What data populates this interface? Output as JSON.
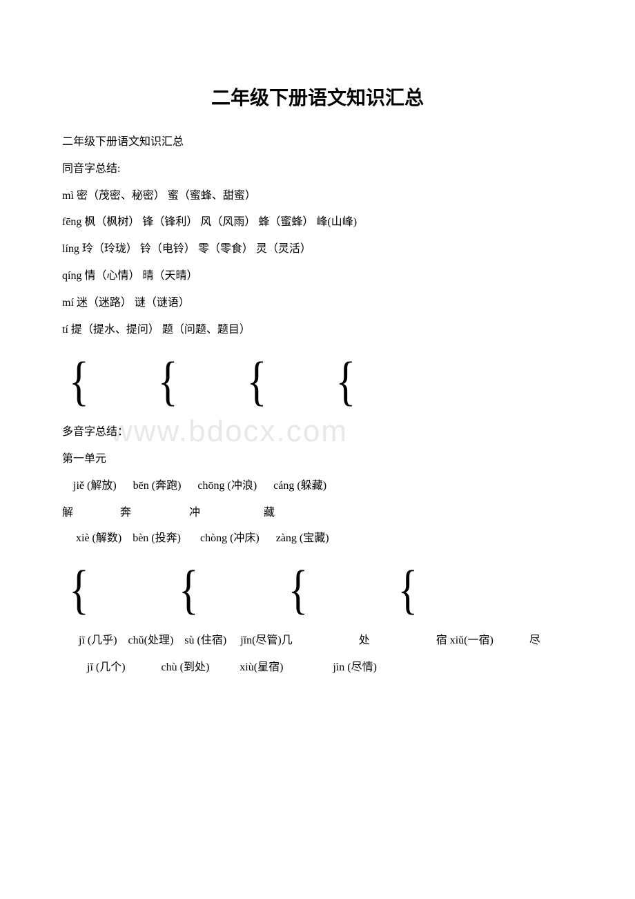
{
  "title": "二年级下册语文知识汇总",
  "subtitle": "二年级下册语文知识汇总",
  "section1_header": "同音字总结:",
  "homophone": {
    "mi": "mì  密（茂密、秘密）  蜜（蜜蜂、甜蜜）",
    "feng": "fēng 枫（枫树）  锋（锋利）  风（风雨）    蜂（蜜蜂）   峰(山峰)",
    "ling": "líng 玲（玲珑）   铃（电铃）   零（零食）   灵（灵活）",
    "qing": "qíng 情（心情）   晴（天晴）",
    "mi2": "mí 迷（迷路）   谜（谜语）",
    "ti": "tí  提（提水、提问）    题（问题、题目）"
  },
  "watermark_text": "www.bdocx.com",
  "section2_header": "多音字总结：",
  "unit_header": "第一单元",
  "poly1_line1": "    jiě (解放)      bēn (奔跑)      chōng (冲浪)      cáng (躲藏)",
  "poly1_hanzi": "解                 奔                     冲                       藏",
  "poly1_line2": "     xiè (解数)    bèn (投奔)       chòng (冲床)      zàng (宝藏)",
  "poly2_line1_a": "      jī (几乎)    chǔ(处理)    sù (住宿)     jǐn(尽管)几                        处                        宿 xiǔ(一宿)             尽",
  "poly2_line2": "         jǐ (几个)             chù (到处)           xiù(星宿)                  jìn (尽情)"
}
